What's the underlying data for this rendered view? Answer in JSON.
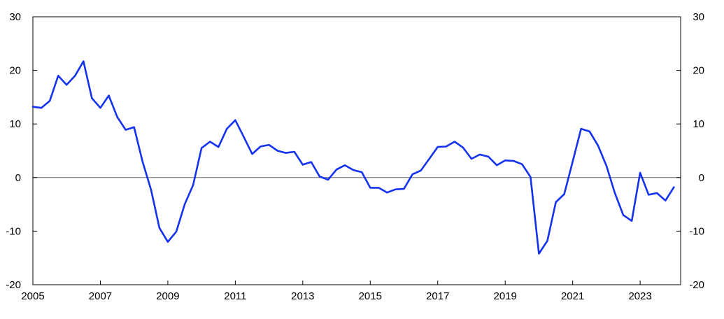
{
  "chart_data": {
    "type": "line",
    "title": "",
    "xlabel": "",
    "ylabel": "",
    "xlim": [
      2005,
      2024.2
    ],
    "ylim": [
      -20,
      30
    ],
    "x_ticks": [
      2005,
      2007,
      2009,
      2011,
      2013,
      2015,
      2017,
      2019,
      2021,
      2023
    ],
    "x_tick_labels": [
      "2005",
      "2007",
      "2009",
      "2011",
      "2013",
      "2015",
      "2017",
      "2019",
      "2021",
      "2023"
    ],
    "y_ticks": [
      -20,
      -10,
      0,
      10,
      20,
      30
    ],
    "y_tick_labels": [
      "-20",
      "-10",
      "0",
      "10",
      "20",
      "30"
    ],
    "grid": false,
    "zero_line": true,
    "series_color": "#1432f0",
    "series": [
      {
        "x": [
          2005.0,
          2005.25,
          2005.5,
          2005.75,
          2006.0,
          2006.25,
          2006.5,
          2006.75,
          2007.0,
          2007.25,
          2007.5,
          2007.75,
          2008.0,
          2008.25,
          2008.5,
          2008.75,
          2009.0,
          2009.25,
          2009.5,
          2009.75,
          2010.0,
          2010.25,
          2010.5,
          2010.75,
          2011.0,
          2011.25,
          2011.5,
          2011.75,
          2012.0,
          2012.25,
          2012.5,
          2012.75,
          2013.0,
          2013.25,
          2013.5,
          2013.75,
          2014.0,
          2014.25,
          2014.5,
          2014.75,
          2015.0,
          2015.25,
          2015.5,
          2015.75,
          2016.0,
          2016.25,
          2016.5,
          2016.75,
          2017.0,
          2017.25,
          2017.5,
          2017.75,
          2018.0,
          2018.25,
          2018.5,
          2018.75,
          2019.0,
          2019.25,
          2019.5,
          2019.75,
          2020.0,
          2020.25,
          2020.5,
          2020.75,
          2021.0,
          2021.25,
          2021.5,
          2021.75,
          2022.0,
          2022.25,
          2022.5,
          2022.75,
          2023.0,
          2023.25,
          2023.5,
          2023.75,
          2024.0
        ],
        "values": [
          13.2,
          13.0,
          14.3,
          19.0,
          17.3,
          19.0,
          21.7,
          14.8,
          13.0,
          15.3,
          11.3,
          8.9,
          9.4,
          3.0,
          -2.2,
          -9.4,
          -12.0,
          -10.1,
          -5.0,
          -1.4,
          5.5,
          6.7,
          5.7,
          9.1,
          10.7,
          7.6,
          4.4,
          5.8,
          6.1,
          5.0,
          4.6,
          4.8,
          2.4,
          2.9,
          0.2,
          -0.4,
          1.5,
          2.3,
          1.4,
          1.0,
          -1.9,
          -1.9,
          -2.8,
          -2.2,
          -2.1,
          0.6,
          1.3,
          3.5,
          5.7,
          5.8,
          6.7,
          5.6,
          3.5,
          4.3,
          3.9,
          2.3,
          3.2,
          3.1,
          2.5,
          0.1,
          -14.2,
          -11.8,
          -4.6,
          -3.1,
          3.0,
          9.1,
          8.6,
          6.0,
          2.2,
          -2.9,
          -7.0,
          -8.1,
          0.9,
          -3.2,
          -2.9,
          -4.3,
          -1.8
        ]
      }
    ]
  }
}
